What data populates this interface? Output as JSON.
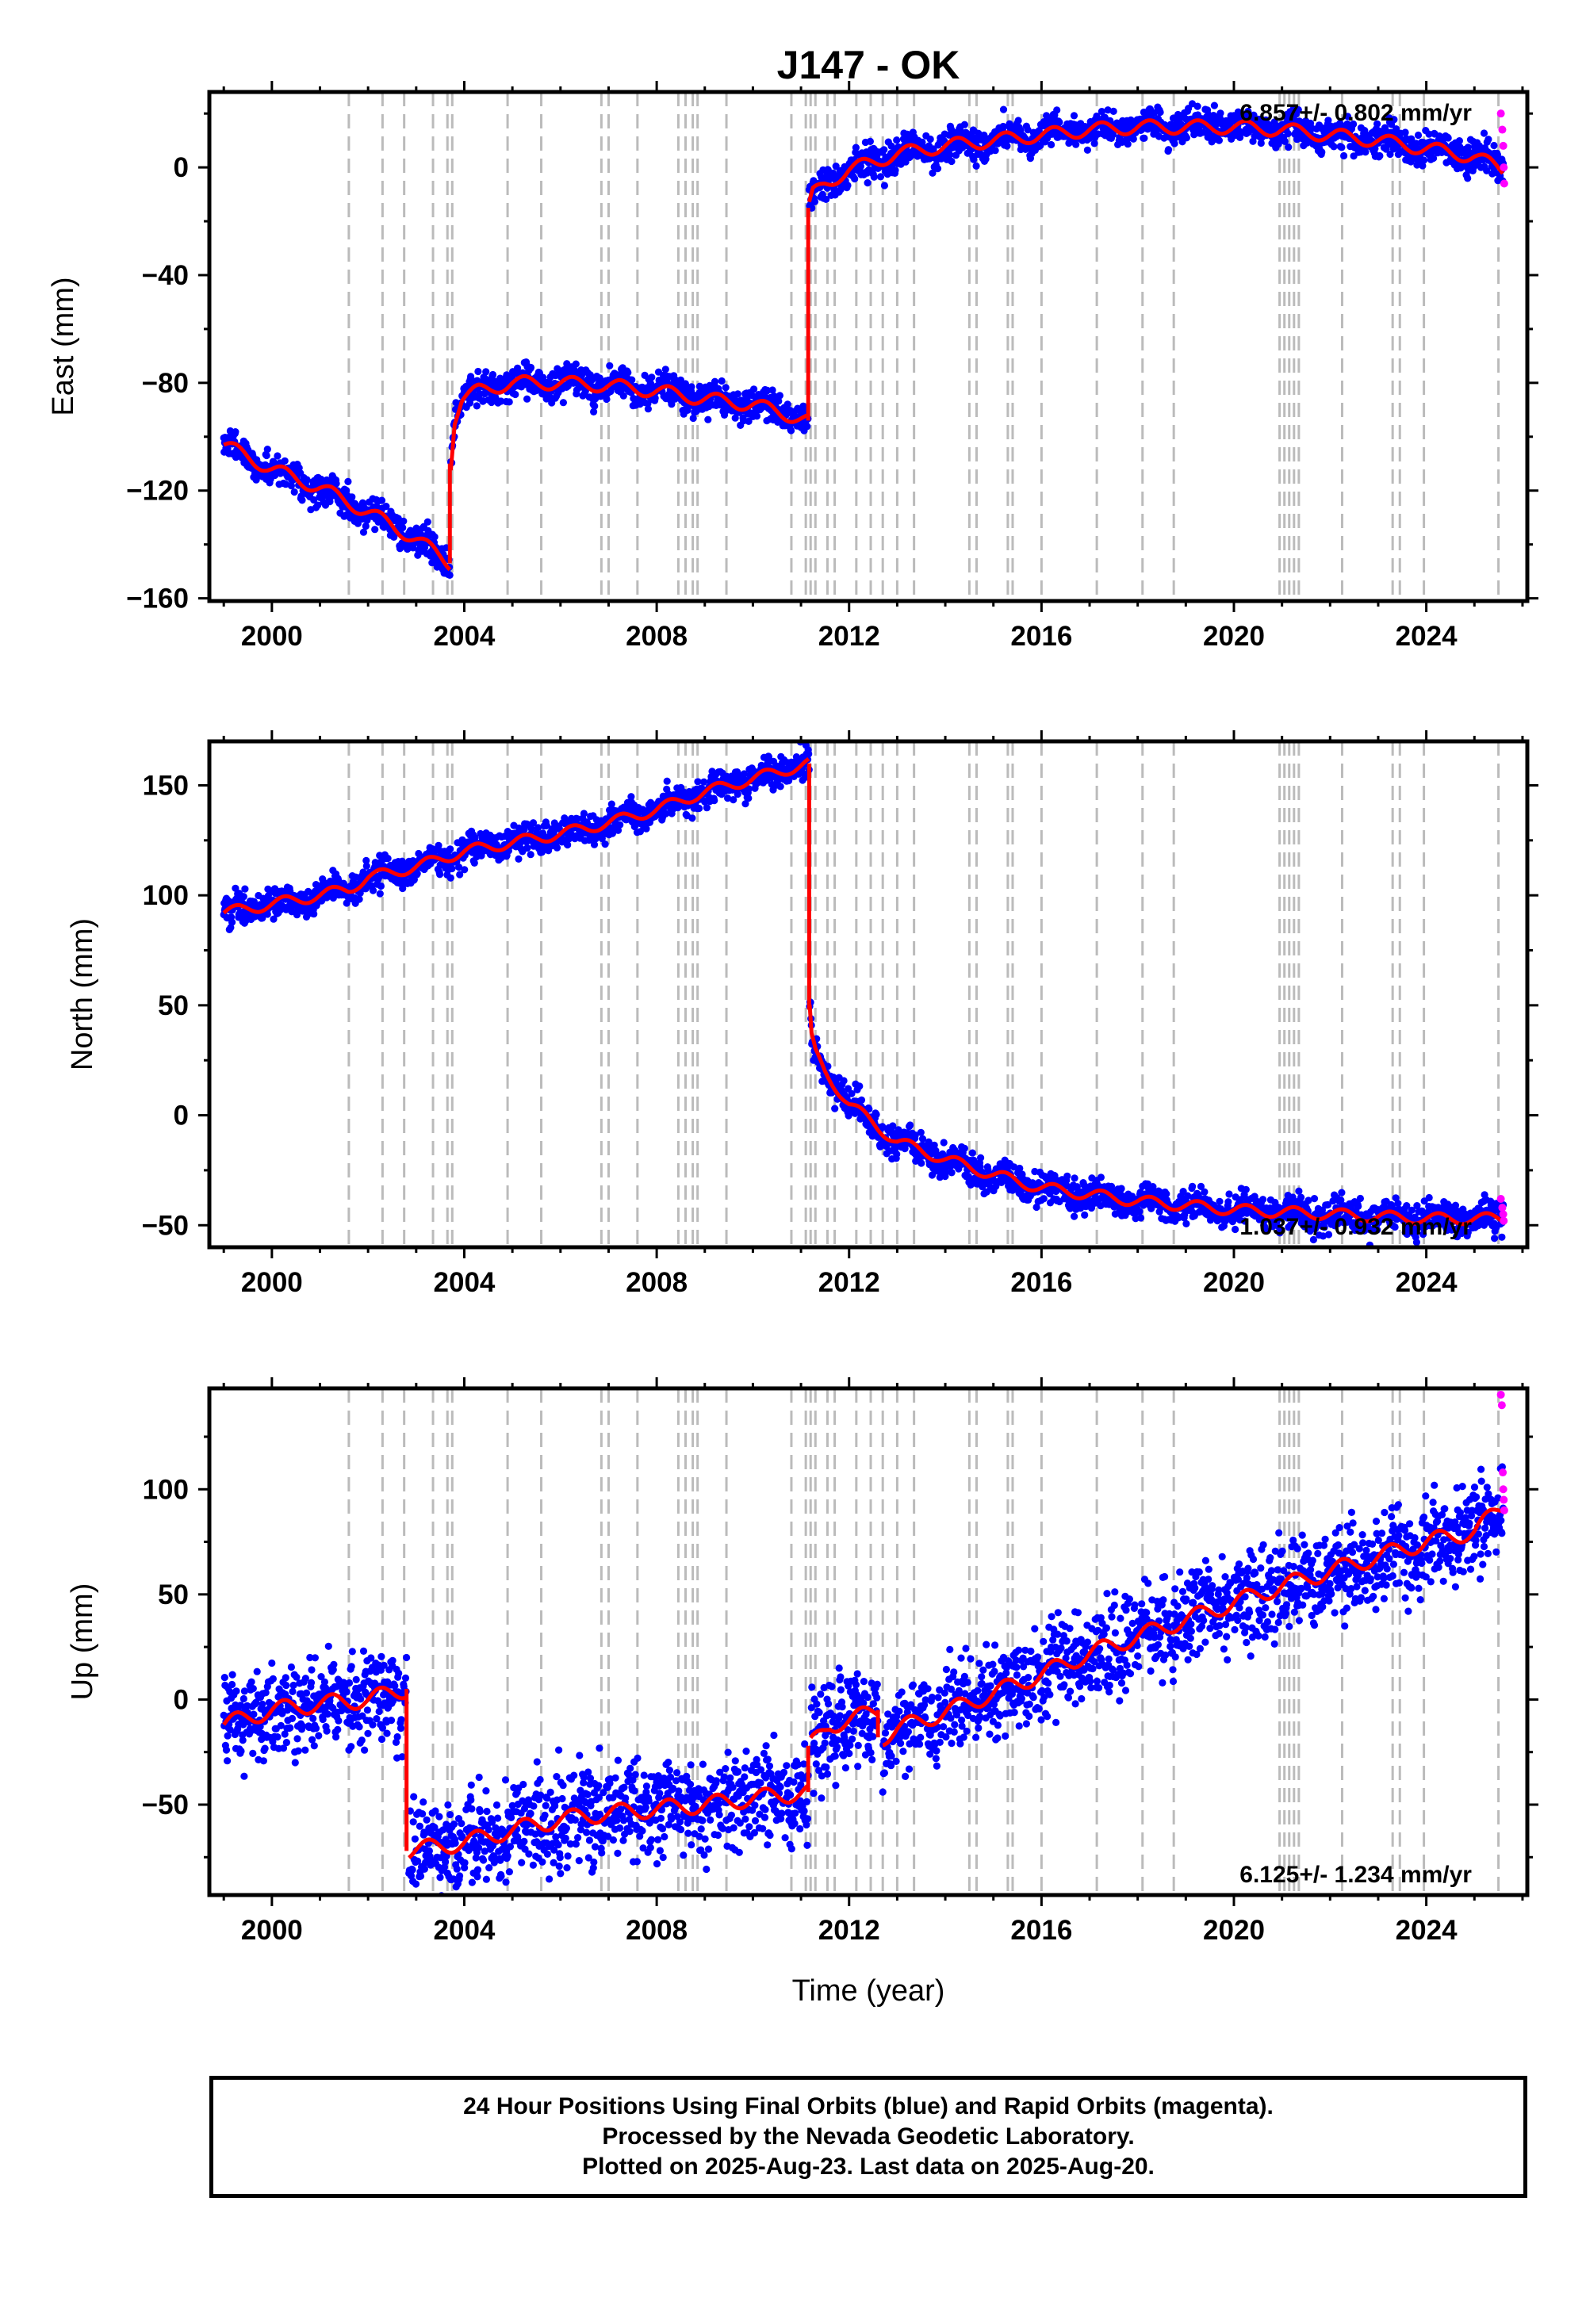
{
  "title": "J147 - OK",
  "xlabel": "Time (year)",
  "footer": {
    "line1": "24 Hour Positions Using Final Orbits (blue) and Rapid Orbits (magenta).",
    "line2": "Processed by the Nevada Geodetic Laboratory.",
    "line3": "Plotted on 2025-Aug-23. Last data on 2025-Aug-20."
  },
  "colors": {
    "final_orbits": "#0000ff",
    "rapid_orbits": "#ff00ff",
    "model": "#ff0000",
    "event_lines": "#bbbbbb"
  },
  "chart_data": [
    {
      "type": "scatter",
      "ylabel": "East (mm)",
      "rate_label": "6.857+/- 0.802 mm/yr",
      "rate_position": "top-right",
      "xlim": [
        1998.7,
        2026.1
      ],
      "ylim": [
        -161,
        28
      ],
      "xticks": [
        2000,
        2004,
        2008,
        2012,
        2016,
        2020,
        2024
      ],
      "yticks": [
        -160,
        -120,
        -80,
        -40,
        0
      ],
      "model_segments": [
        {
          "x": [
            1999.0,
            2000.0,
            2001.0,
            2002.0,
            2003.0,
            2003.7
          ],
          "y": [
            -103,
            -112,
            -119,
            -128,
            -138,
            -147
          ]
        },
        {
          "x": [
            2003.72,
            2003.8,
            2003.95,
            2004.3,
            2005.0,
            2006.0,
            2007.0,
            2008.0,
            2009.0,
            2010.0,
            2011.15
          ],
          "y": [
            -110,
            -93,
            -86,
            -83,
            -80,
            -80,
            -81,
            -83,
            -86,
            -88,
            -94
          ]
        },
        {
          "x": [
            2011.17,
            2011.25,
            2011.5,
            2012.0,
            2013.0,
            2014.0,
            2015.0,
            2016.0,
            2017.0,
            2018.0,
            2019.0,
            2020.0,
            2021.0,
            2022.0,
            2023.0,
            2024.0,
            2025.0,
            2025.6
          ],
          "y": [
            -15,
            -10,
            -6,
            -1,
            5,
            8,
            10,
            12,
            14,
            15,
            15,
            15,
            14,
            12,
            10,
            7,
            4,
            -1
          ]
        }
      ],
      "rapid_points": {
        "x": [
          2025.55,
          2025.58,
          2025.6,
          2025.61,
          2025.62
        ],
        "y": [
          20,
          14,
          8,
          0,
          -6
        ]
      }
    },
    {
      "type": "scatter",
      "ylabel": "North (mm)",
      "rate_label": "1.037+/- 0.932 mm/yr",
      "rate_position": "bottom-right",
      "xlim": [
        1998.7,
        2026.1
      ],
      "ylim": [
        -60,
        170
      ],
      "xticks": [
        2000,
        2004,
        2008,
        2012,
        2016,
        2020,
        2024
      ],
      "yticks": [
        -50,
        0,
        50,
        100,
        150
      ],
      "model_segments": [
        {
          "x": [
            1999.0,
            2000.0,
            2001.0,
            2001.6,
            2002.0,
            2003.0,
            2004.0,
            2005.0,
            2006.0,
            2007.0,
            2008.0,
            2009.0,
            2010.0,
            2011.17
          ],
          "y": [
            92,
            96,
            100,
            103,
            108,
            113,
            120,
            124,
            128,
            133,
            139,
            147,
            153,
            160
          ]
        },
        {
          "x": [
            2011.18,
            2011.22,
            2011.3,
            2011.5,
            2012.0,
            2013.0,
            2014.0,
            2015.0,
            2016.0,
            2017.0,
            2018.0,
            2019.0,
            2020.0,
            2021.0,
            2022.0,
            2023.0,
            2024.0,
            2025.0,
            2025.6
          ],
          "y": [
            48,
            35,
            28,
            20,
            5,
            -12,
            -20,
            -27,
            -33,
            -36,
            -39,
            -41,
            -43,
            -44,
            -45,
            -46,
            -47,
            -47,
            -47
          ]
        }
      ],
      "rapid_points": {
        "x": [
          2025.55,
          2025.58,
          2025.6,
          2025.61
        ],
        "y": [
          -38,
          -42,
          -45,
          -48
        ]
      }
    },
    {
      "type": "scatter",
      "ylabel": "Up (mm)",
      "rate_label": "6.125+/- 1.234 mm/yr",
      "rate_position": "bottom-right",
      "xlim": [
        1998.7,
        2026.1
      ],
      "ylim": [
        -93,
        148
      ],
      "xticks": [
        2000,
        2004,
        2008,
        2012,
        2016,
        2020,
        2024
      ],
      "yticks": [
        -50,
        0,
        50,
        100
      ],
      "model_segments": [
        {
          "x": [
            1999.0,
            2000.0,
            2001.0,
            2002.0,
            2002.8
          ],
          "y": [
            -12,
            -5,
            -2,
            0,
            5
          ]
        },
        {
          "x": [
            2002.85,
            2004.0,
            2005.0,
            2006.0,
            2007.0,
            2008.0,
            2009.0,
            2010.0,
            2011.15
          ],
          "y": [
            -72,
            -68,
            -62,
            -57,
            -54,
            -52,
            -50,
            -47,
            -44
          ]
        },
        {
          "x": [
            2011.2,
            2011.6,
            2012.0,
            2012.6
          ],
          "y": [
            -22,
            -12,
            -10,
            -5
          ]
        },
        {
          "x": [
            2012.7,
            2013.0,
            2014.0,
            2015.0,
            2016.0,
            2017.0,
            2018.0,
            2019.0,
            2020.0,
            2021.0,
            2022.0,
            2023.0,
            2024.0,
            2025.0,
            2025.6
          ],
          "y": [
            -18,
            -14,
            -6,
            3,
            12,
            22,
            30,
            38,
            46,
            54,
            61,
            68,
            75,
            80,
            92
          ]
        }
      ],
      "rapid_points": {
        "x": [
          2025.55,
          2025.57,
          2025.59,
          2025.6,
          2025.61,
          2025.62
        ],
        "y": [
          145,
          140,
          108,
          100,
          95,
          90
        ]
      }
    }
  ],
  "event_lines": [
    2001.6,
    2002.3,
    2002.75,
    2003.35,
    2003.65,
    2003.75,
    2004.9,
    2005.6,
    2006.85,
    2007.0,
    2007.6,
    2008.45,
    2008.6,
    2008.75,
    2008.85,
    2009.45,
    2010.8,
    2011.1,
    2011.2,
    2011.3,
    2011.55,
    2011.7,
    2012.15,
    2012.45,
    2012.7,
    2013.0,
    2013.35,
    2014.5,
    2014.65,
    2015.3,
    2015.4,
    2016.0,
    2017.15,
    2018.1,
    2018.75,
    2020.95,
    2021.05,
    2021.15,
    2021.25,
    2021.35,
    2022.25,
    2023.3,
    2023.45,
    2023.95,
    2025.5
  ]
}
